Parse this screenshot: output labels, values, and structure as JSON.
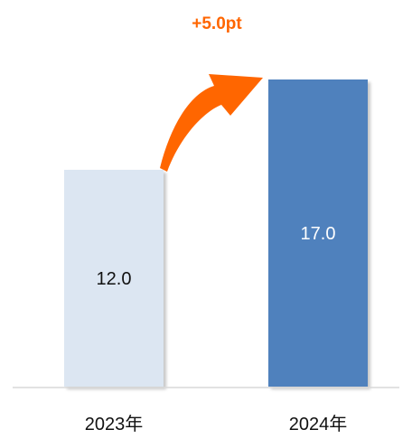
{
  "chart_data": {
    "type": "bar",
    "title": "",
    "xlabel": "",
    "ylabel": "",
    "categories": [
      "2023年",
      "2024年"
    ],
    "values": [
      12.0,
      17.0
    ],
    "value_labels": [
      "12.0",
      "17.0"
    ],
    "ylim": [
      0,
      20
    ],
    "grid": false,
    "legend": "none",
    "bar_colors": [
      "#dce6f2",
      "#4f81bd"
    ],
    "label_colors": [
      "#111111",
      "#ffffff"
    ],
    "annotation": {
      "text": "+5.0pt",
      "color": "#ff6600",
      "kind": "curved-arrow",
      "from_category": "2023年",
      "to_category": "2024年"
    }
  }
}
